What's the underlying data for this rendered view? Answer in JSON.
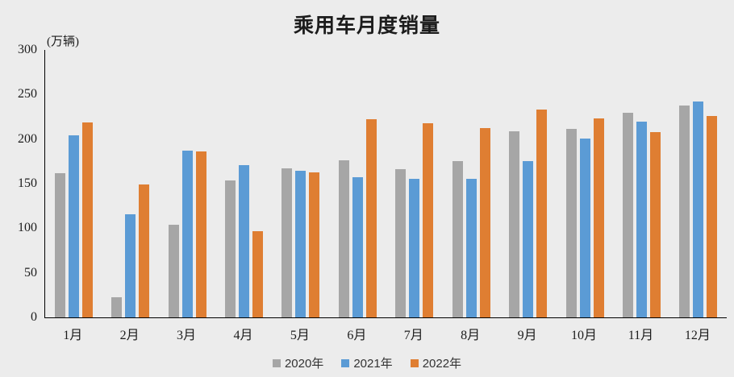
{
  "title": "乘用车月度销量",
  "unit_label": "(万辆)",
  "colors": {
    "background": "#ececec",
    "axis": "#000000",
    "text": "#1c1c1c",
    "series_2020": "#a6a6a6",
    "series_2021": "#5b9bd5",
    "series_2022": "#df7e32"
  },
  "chart_data": {
    "type": "bar",
    "title": "乘用车月度销量",
    "unit": "万辆",
    "categories": [
      "1月",
      "2月",
      "3月",
      "4月",
      "5月",
      "6月",
      "7月",
      "8月",
      "9月",
      "10月",
      "11月",
      "12月"
    ],
    "series": [
      {
        "name": "2020年",
        "color": "#a6a6a6",
        "values": [
          161.4,
          22.4,
          104.3,
          153.6,
          167.4,
          176.4,
          166.5,
          175.3,
          208.8,
          211.1,
          229.7,
          237.5
        ]
      },
      {
        "name": "2021年",
        "color": "#5b9bd5",
        "values": [
          204.5,
          115.5,
          187.4,
          170.4,
          164.6,
          156.9,
          155.1,
          155.2,
          175.1,
          200.7,
          219.2,
          242.2
        ]
      },
      {
        "name": "2022年",
        "color": "#df7e32",
        "values": [
          218.6,
          148.7,
          186.4,
          96.5,
          162.3,
          222.2,
          217.4,
          212.5,
          233.2,
          223.1,
          207.5,
          226.3
        ]
      }
    ],
    "ylim": [
      0,
      300
    ],
    "y_ticks": [
      0,
      50,
      100,
      150,
      200,
      250,
      300
    ],
    "xlabel": "",
    "ylabel": "(万辆)",
    "grid": false,
    "legend_position": "bottom"
  }
}
